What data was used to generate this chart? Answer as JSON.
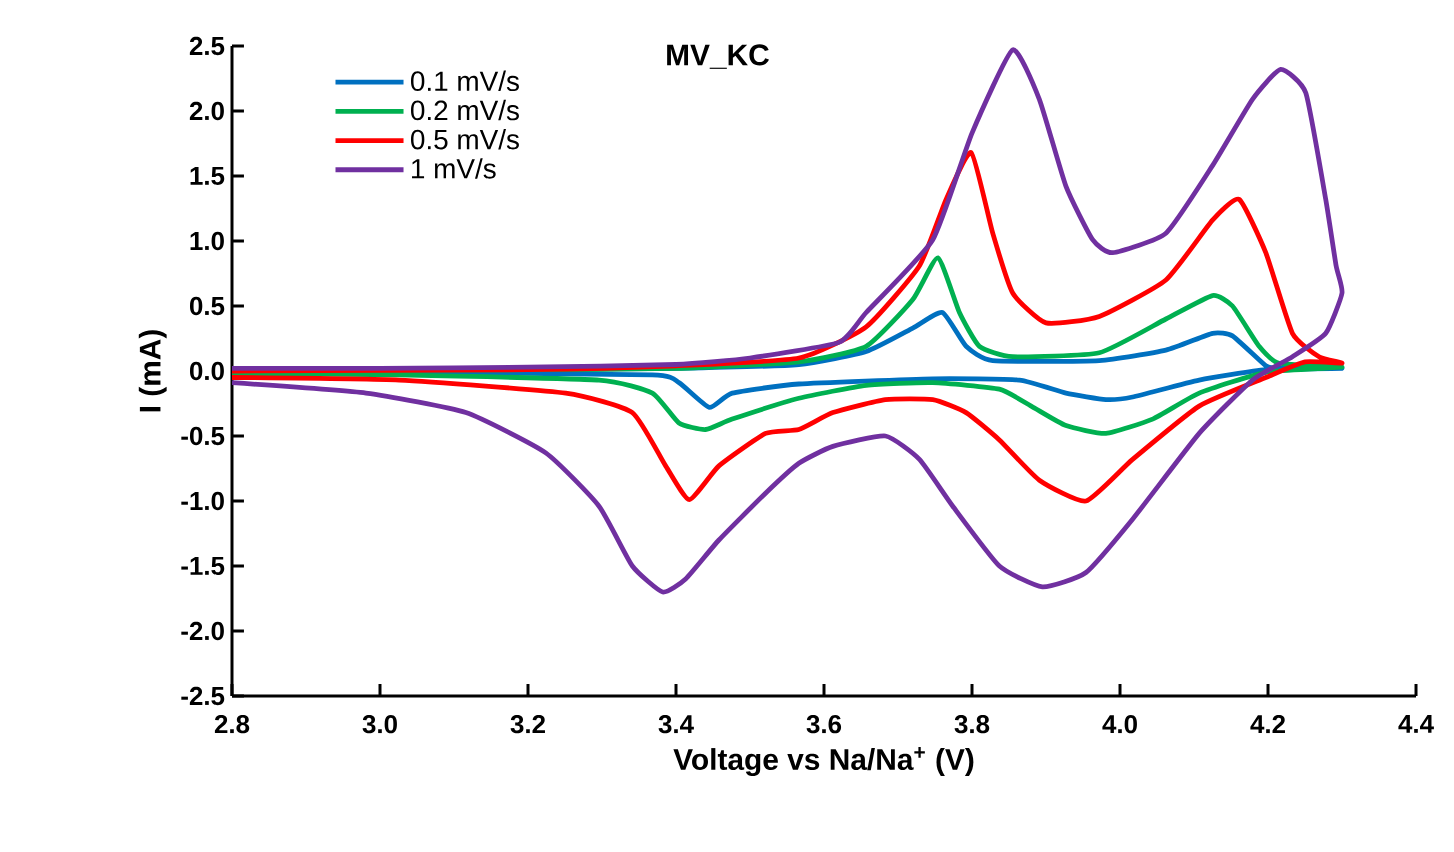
{
  "chart_data": {
    "type": "line",
    "title": "MV_KC",
    "xlabel": "Voltage vs Na/Na$^{+}$ (V)",
    "ylabel": "I (mA)",
    "xlim": [
      2.8,
      4.4
    ],
    "ylim": [
      -2.5,
      2.5
    ],
    "xticks": [
      2.8,
      {
        "value": 3,
        "label": "3.0"
      },
      3.2,
      3.4,
      3.6,
      3.8,
      {
        "value": 4,
        "label": "4.0"
      },
      4.2,
      4.4
    ],
    "yticks": [
      -2.5,
      {
        "value": -2,
        "label": "-2.0"
      },
      -1.5,
      {
        "value": -1,
        "label": "-1.0"
      },
      -0.5,
      {
        "value": 0,
        "label": "0.0"
      },
      0.5,
      {
        "value": 1,
        "label": "1.0"
      },
      1.5,
      {
        "value": 2,
        "label": "2.0"
      },
      2.5
    ],
    "legend": "top left",
    "series": [
      {
        "name": "0.1 mV/s",
        "color": "#0070c0",
        "x": [
          2.8,
          3.2,
          3.4,
          3.566,
          3.657,
          3.72,
          3.76,
          3.792,
          3.828,
          3.972,
          4.062,
          4.125,
          4.152,
          4.197,
          4.215,
          4.3,
          4.197,
          4.107,
          4.017,
          3.981,
          3.927,
          3.864,
          3.747,
          3.566,
          3.476,
          3.445,
          3.404,
          3.368,
          3.026,
          2.8
        ],
        "values": [
          0.0,
          0.01,
          0.02,
          0.05,
          0.15,
          0.33,
          0.45,
          0.19,
          0.08,
          0.08,
          0.16,
          0.29,
          0.27,
          0.04,
          0.02,
          0.02,
          0.01,
          -0.07,
          -0.2,
          -0.22,
          -0.17,
          -0.07,
          -0.06,
          -0.1,
          -0.17,
          -0.28,
          -0.09,
          -0.03,
          -0.01,
          -0.01
        ]
      },
      {
        "name": "0.2 mV/s",
        "color": "#00b050",
        "x": [
          2.8,
          3.2,
          3.4,
          3.566,
          3.657,
          3.72,
          3.754,
          3.783,
          3.81,
          3.855,
          3.972,
          4.062,
          4.125,
          4.152,
          4.188,
          4.215,
          4.3,
          4.197,
          4.107,
          4.044,
          3.981,
          3.927,
          3.88,
          3.837,
          3.747,
          3.657,
          3.566,
          3.476,
          3.44,
          3.404,
          3.368,
          3.296,
          3.026,
          2.8
        ],
        "values": [
          0.0,
          0.01,
          0.02,
          0.07,
          0.19,
          0.55,
          0.87,
          0.45,
          0.19,
          0.11,
          0.14,
          0.4,
          0.58,
          0.5,
          0.19,
          0.06,
          0.03,
          -0.01,
          -0.17,
          -0.37,
          -0.48,
          -0.42,
          -0.27,
          -0.14,
          -0.09,
          -0.11,
          -0.21,
          -0.37,
          -0.45,
          -0.4,
          -0.17,
          -0.07,
          -0.03,
          -0.02
        ]
      },
      {
        "name": "0.5 mV/s",
        "color": "#ff0000",
        "x": [
          2.8,
          3.2,
          3.4,
          3.566,
          3.657,
          3.729,
          3.765,
          3.799,
          3.828,
          3.855,
          3.9,
          3.972,
          4.062,
          4.125,
          4.161,
          4.197,
          4.233,
          4.269,
          4.3,
          4.25,
          4.197,
          4.107,
          4.017,
          3.954,
          3.891,
          3.837,
          3.792,
          3.747,
          3.683,
          3.612,
          3.566,
          3.521,
          3.458,
          3.418,
          3.386,
          3.341,
          3.251,
          3.026,
          2.8
        ],
        "values": [
          0.0,
          0.01,
          0.04,
          0.1,
          0.34,
          0.81,
          1.32,
          1.68,
          1.06,
          0.6,
          0.37,
          0.42,
          0.7,
          1.16,
          1.32,
          0.91,
          0.29,
          0.11,
          0.06,
          0.07,
          -0.05,
          -0.27,
          -0.68,
          -1.0,
          -0.84,
          -0.53,
          -0.32,
          -0.22,
          -0.22,
          -0.32,
          -0.45,
          -0.48,
          -0.73,
          -0.99,
          -0.73,
          -0.32,
          -0.17,
          -0.07,
          -0.05
        ]
      },
      {
        "name": "1 mV/s",
        "color": "#7030a0",
        "x": [
          2.8,
          3.0,
          3.2,
          3.4,
          3.5,
          3.62,
          3.657,
          3.747,
          3.8,
          3.855,
          3.891,
          3.927,
          3.963,
          3.99,
          4.062,
          4.125,
          4.179,
          4.217,
          4.251,
          4.278,
          4.292,
          4.3,
          4.278,
          4.233,
          4.179,
          4.107,
          4.017,
          3.954,
          3.895,
          3.837,
          3.774,
          3.729,
          3.683,
          3.612,
          3.566,
          3.521,
          3.458,
          3.413,
          3.382,
          3.341,
          3.296,
          3.224,
          3.116,
          2.981,
          2.8
        ],
        "values": [
          0.02,
          0.02,
          0.03,
          0.05,
          0.1,
          0.22,
          0.45,
          1.01,
          1.83,
          2.47,
          2.09,
          1.42,
          1.01,
          0.91,
          1.06,
          1.58,
          2.09,
          2.32,
          2.14,
          1.32,
          0.81,
          0.6,
          0.29,
          0.11,
          -0.07,
          -0.48,
          -1.14,
          -1.55,
          -1.66,
          -1.5,
          -1.04,
          -0.68,
          -0.5,
          -0.58,
          -0.71,
          -0.94,
          -1.3,
          -1.6,
          -1.7,
          -1.5,
          -1.04,
          -0.63,
          -0.32,
          -0.17,
          -0.09
        ]
      }
    ]
  }
}
